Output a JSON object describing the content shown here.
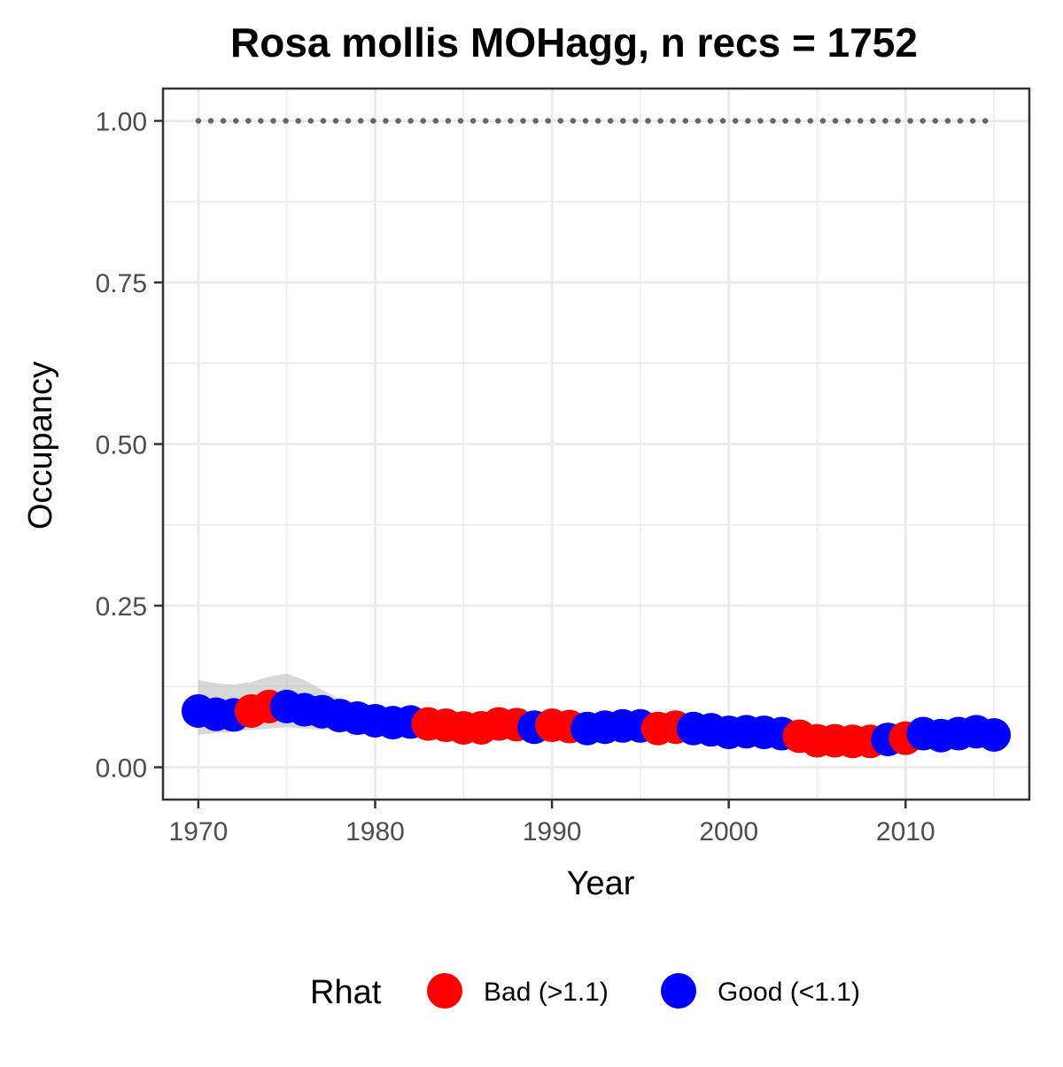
{
  "chart_data": {
    "type": "scatter",
    "title": "Rosa mollis MOHagg, n recs = 1752",
    "xlabel": "Year",
    "ylabel": "Occupancy",
    "xlim": [
      1968,
      2017
    ],
    "ylim": [
      -0.05,
      1.05
    ],
    "x_ticks": [
      1970,
      1980,
      1990,
      2000,
      2010
    ],
    "x_tick_labels": [
      "1970",
      "1980",
      "1990",
      "2000",
      "2010"
    ],
    "x_minor_ticks": [
      1975,
      1985,
      1995,
      2005,
      2015
    ],
    "y_ticks": [
      0,
      0.25,
      0.5,
      0.75,
      1.0
    ],
    "y_tick_labels": [
      "0.00",
      "0.25",
      "0.50",
      "0.75",
      "1.00"
    ],
    "y_minor_ticks": [
      0.125,
      0.375,
      0.625,
      0.875
    ],
    "grid": true,
    "legend": {
      "title": "Rhat",
      "position": "bottom",
      "entries": [
        {
          "label": "Bad (>1.1)",
          "color": "#ff0000"
        },
        {
          "label": "Good (<1.1)",
          "color": "#0000ff"
        }
      ]
    },
    "colors": {
      "bad": "#ff0000",
      "good": "#0000ff",
      "ribbon": "#bebebe",
      "reference": "#666666",
      "grid": "#ebebeb",
      "frame": "#333333"
    },
    "reference_line": {
      "y": 1.0,
      "style": "dotted",
      "x": [
        1970,
        2015
      ]
    },
    "ribbon": {
      "x": [
        1970,
        1971,
        1972,
        1973,
        1974,
        1975,
        1976,
        1977,
        1978,
        1979,
        1980,
        1981,
        1982,
        1983,
        1984,
        1985,
        1986,
        1987,
        1988,
        1989,
        1990,
        1991,
        1992,
        1993,
        1994,
        1995,
        1996,
        1997,
        1998,
        1999,
        2000,
        2001,
        2002,
        2003,
        2004,
        2005,
        2006,
        2007,
        2008,
        2009,
        2010,
        2011,
        2012,
        2013,
        2014,
        2015
      ],
      "lower": [
        0.05,
        0.053,
        0.055,
        0.058,
        0.06,
        0.062,
        0.06,
        0.058,
        0.057,
        0.055,
        0.054,
        0.053,
        0.054,
        0.055,
        0.055,
        0.053,
        0.052,
        0.055,
        0.056,
        0.055,
        0.055,
        0.054,
        0.053,
        0.054,
        0.055,
        0.055,
        0.052,
        0.053,
        0.052,
        0.05,
        0.048,
        0.047,
        0.046,
        0.045,
        0.042,
        0.035,
        0.034,
        0.034,
        0.035,
        0.037,
        0.039,
        0.042,
        0.043,
        0.044,
        0.046,
        0.044
      ],
      "upper": [
        0.135,
        0.13,
        0.128,
        0.132,
        0.14,
        0.145,
        0.135,
        0.12,
        0.105,
        0.1,
        0.095,
        0.09,
        0.085,
        0.08,
        0.078,
        0.076,
        0.075,
        0.078,
        0.077,
        0.074,
        0.076,
        0.074,
        0.072,
        0.073,
        0.074,
        0.074,
        0.071,
        0.072,
        0.07,
        0.068,
        0.066,
        0.065,
        0.064,
        0.062,
        0.058,
        0.052,
        0.05,
        0.05,
        0.05,
        0.052,
        0.054,
        0.058,
        0.06,
        0.061,
        0.063,
        0.06
      ]
    },
    "series": [
      {
        "name": "Occupancy",
        "points": [
          {
            "x": 1970,
            "y": 0.087,
            "rhat": "Good (<1.1)"
          },
          {
            "x": 1971,
            "y": 0.082,
            "rhat": "Good (<1.1)"
          },
          {
            "x": 1972,
            "y": 0.081,
            "rhat": "Good (<1.1)"
          },
          {
            "x": 1973,
            "y": 0.087,
            "rhat": "Bad (>1.1)"
          },
          {
            "x": 1974,
            "y": 0.094,
            "rhat": "Bad (>1.1)"
          },
          {
            "x": 1975,
            "y": 0.094,
            "rhat": "Good (<1.1)"
          },
          {
            "x": 1976,
            "y": 0.089,
            "rhat": "Good (<1.1)"
          },
          {
            "x": 1977,
            "y": 0.086,
            "rhat": "Good (<1.1)"
          },
          {
            "x": 1978,
            "y": 0.08,
            "rhat": "Good (<1.1)"
          },
          {
            "x": 1979,
            "y": 0.076,
            "rhat": "Good (<1.1)"
          },
          {
            "x": 1980,
            "y": 0.072,
            "rhat": "Good (<1.1)"
          },
          {
            "x": 1981,
            "y": 0.069,
            "rhat": "Good (<1.1)"
          },
          {
            "x": 1982,
            "y": 0.07,
            "rhat": "Good (<1.1)"
          },
          {
            "x": 1983,
            "y": 0.067,
            "rhat": "Bad (>1.1)"
          },
          {
            "x": 1984,
            "y": 0.065,
            "rhat": "Bad (>1.1)"
          },
          {
            "x": 1985,
            "y": 0.061,
            "rhat": "Bad (>1.1)"
          },
          {
            "x": 1986,
            "y": 0.061,
            "rhat": "Bad (>1.1)"
          },
          {
            "x": 1987,
            "y": 0.067,
            "rhat": "Bad (>1.1)"
          },
          {
            "x": 1988,
            "y": 0.066,
            "rhat": "Bad (>1.1)"
          },
          {
            "x": 1989,
            "y": 0.062,
            "rhat": "Good (<1.1)"
          },
          {
            "x": 1990,
            "y": 0.065,
            "rhat": "Bad (>1.1)"
          },
          {
            "x": 1991,
            "y": 0.063,
            "rhat": "Bad (>1.1)"
          },
          {
            "x": 1992,
            "y": 0.06,
            "rhat": "Good (<1.1)"
          },
          {
            "x": 1993,
            "y": 0.062,
            "rhat": "Good (<1.1)"
          },
          {
            "x": 1994,
            "y": 0.064,
            "rhat": "Good (<1.1)"
          },
          {
            "x": 1995,
            "y": 0.064,
            "rhat": "Good (<1.1)"
          },
          {
            "x": 1996,
            "y": 0.06,
            "rhat": "Bad (>1.1)"
          },
          {
            "x": 1997,
            "y": 0.062,
            "rhat": "Bad (>1.1)"
          },
          {
            "x": 1998,
            "y": 0.06,
            "rhat": "Good (<1.1)"
          },
          {
            "x": 1999,
            "y": 0.058,
            "rhat": "Good (<1.1)"
          },
          {
            "x": 2000,
            "y": 0.054,
            "rhat": "Good (<1.1)"
          },
          {
            "x": 2001,
            "y": 0.055,
            "rhat": "Good (<1.1)"
          },
          {
            "x": 2002,
            "y": 0.054,
            "rhat": "Good (<1.1)"
          },
          {
            "x": 2003,
            "y": 0.052,
            "rhat": "Good (<1.1)"
          },
          {
            "x": 2004,
            "y": 0.048,
            "rhat": "Bad (>1.1)"
          },
          {
            "x": 2005,
            "y": 0.041,
            "rhat": "Bad (>1.1)"
          },
          {
            "x": 2006,
            "y": 0.041,
            "rhat": "Bad (>1.1)"
          },
          {
            "x": 2007,
            "y": 0.04,
            "rhat": "Bad (>1.1)"
          },
          {
            "x": 2008,
            "y": 0.04,
            "rhat": "Bad (>1.1)"
          },
          {
            "x": 2009,
            "y": 0.043,
            "rhat": "Good (<1.1)"
          },
          {
            "x": 2010,
            "y": 0.045,
            "rhat": "Bad (>1.1)"
          },
          {
            "x": 2011,
            "y": 0.052,
            "rhat": "Good (<1.1)"
          },
          {
            "x": 2012,
            "y": 0.049,
            "rhat": "Good (<1.1)"
          },
          {
            "x": 2013,
            "y": 0.052,
            "rhat": "Good (<1.1)"
          },
          {
            "x": 2014,
            "y": 0.055,
            "rhat": "Good (<1.1)"
          },
          {
            "x": 2015,
            "y": 0.05,
            "rhat": "Good (<1.1)"
          }
        ]
      }
    ]
  }
}
